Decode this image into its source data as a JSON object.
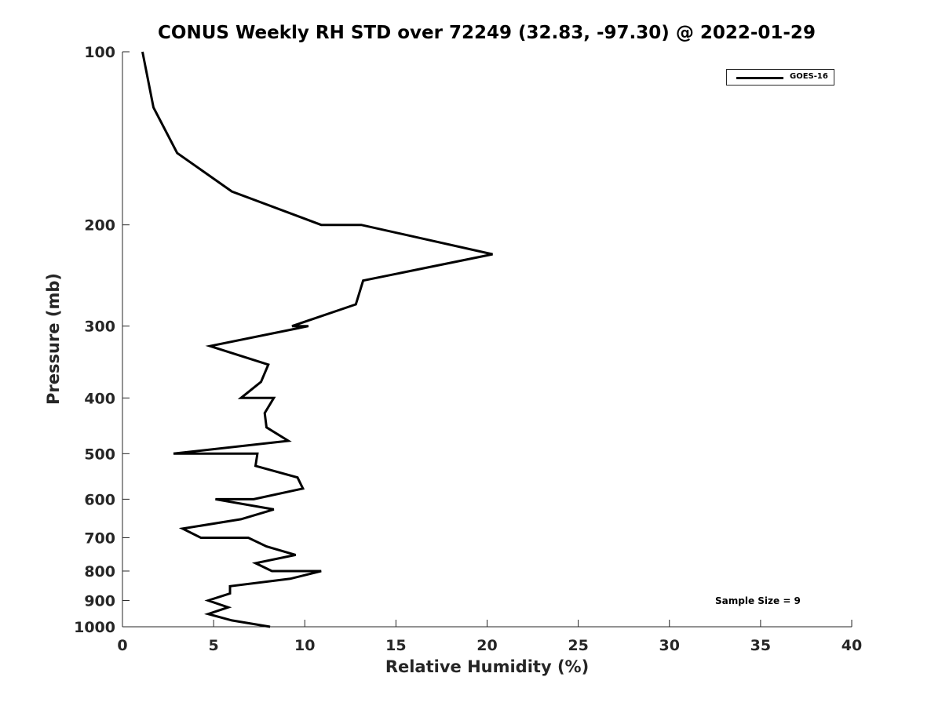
{
  "chart_data": {
    "type": "line",
    "title": "CONUS Weekly RH STD over 72249 (32.83, -97.30) @ 2022-01-29",
    "xlabel": "Relative Humidity (%)",
    "ylabel": "Pressure (mb)",
    "xlim": [
      0,
      40
    ],
    "ylim": [
      100,
      1000
    ],
    "y_scale": "log",
    "y_reversed": true,
    "grid": false,
    "legend_position": "top-right",
    "x_ticks": [
      0,
      5,
      10,
      15,
      20,
      25,
      30,
      35,
      40
    ],
    "y_ticks": [
      100,
      200,
      300,
      400,
      500,
      600,
      700,
      800,
      900,
      1000
    ],
    "annotation": "Sample Size = 9",
    "series": [
      {
        "name": "GOES-16",
        "color": "#000000",
        "points": [
          [
            1.1,
            100
          ],
          [
            1.7,
            125
          ],
          [
            3.0,
            150
          ],
          [
            6.0,
            175
          ],
          [
            10.9,
            200
          ],
          [
            13.1,
            200
          ],
          [
            20.3,
            225
          ],
          [
            13.2,
            250
          ],
          [
            12.8,
            275
          ],
          [
            9.3,
            300
          ],
          [
            10.2,
            300
          ],
          [
            4.8,
            325
          ],
          [
            8.0,
            350
          ],
          [
            7.6,
            375
          ],
          [
            6.5,
            400
          ],
          [
            8.3,
            400
          ],
          [
            7.8,
            425
          ],
          [
            7.9,
            450
          ],
          [
            9.1,
            475
          ],
          [
            2.8,
            500
          ],
          [
            7.4,
            500
          ],
          [
            7.3,
            525
          ],
          [
            9.6,
            550
          ],
          [
            9.9,
            575
          ],
          [
            7.2,
            600
          ],
          [
            5.1,
            600
          ],
          [
            8.3,
            625
          ],
          [
            6.5,
            650
          ],
          [
            3.3,
            675
          ],
          [
            4.3,
            700
          ],
          [
            6.9,
            700
          ],
          [
            7.9,
            725
          ],
          [
            9.5,
            750
          ],
          [
            7.3,
            775
          ],
          [
            8.2,
            800
          ],
          [
            10.9,
            800
          ],
          [
            9.2,
            825
          ],
          [
            5.9,
            850
          ],
          [
            5.9,
            875
          ],
          [
            4.7,
            900
          ],
          [
            5.8,
            925
          ],
          [
            4.7,
            950
          ],
          [
            6.0,
            975
          ],
          [
            8.1,
            1000
          ]
        ]
      }
    ]
  }
}
